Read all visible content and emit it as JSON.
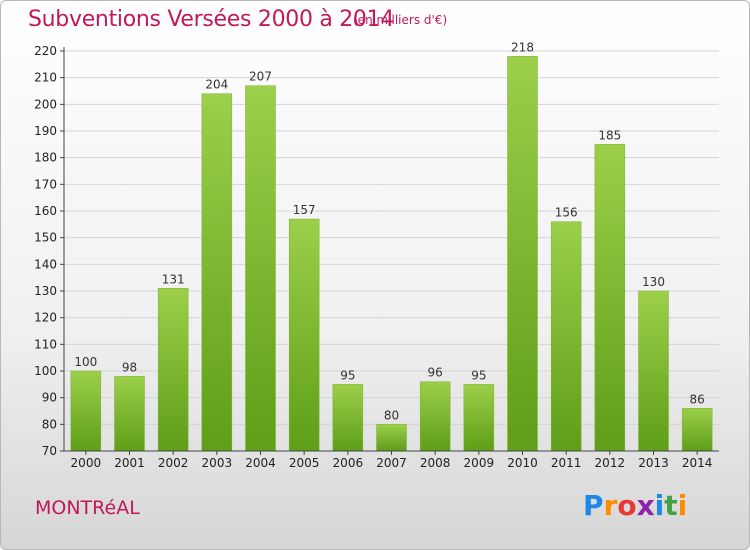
{
  "header": {
    "title": "Subventions Versées 2000 à 2014",
    "subtitle": "(en milliers d'€)"
  },
  "footer": {
    "city": "MONTRéAL",
    "logo_letters": [
      "P",
      "r",
      "o",
      "x",
      "i",
      "t",
      "i"
    ],
    "logo_colors": [
      "#1e88e5",
      "#fb8c00",
      "#e53935",
      "#8e24aa",
      "#1e88e5",
      "#43a047",
      "#fb8c00"
    ]
  },
  "chart_data": {
    "type": "bar",
    "title": "Subventions Versées 2000 à 2014",
    "subtitle": "(en milliers d'€)",
    "categories": [
      "2000",
      "2001",
      "2002",
      "2003",
      "2004",
      "2005",
      "2006",
      "2007",
      "2008",
      "2009",
      "2010",
      "2011",
      "2012",
      "2013",
      "2014"
    ],
    "values": [
      100,
      98,
      131,
      204,
      207,
      157,
      95,
      80,
      96,
      95,
      218,
      156,
      185,
      130,
      86
    ],
    "ylim": [
      70,
      220
    ],
    "yticks": [
      70,
      80,
      90,
      100,
      110,
      120,
      130,
      140,
      150,
      160,
      170,
      180,
      190,
      200,
      210,
      220
    ],
    "grid": true,
    "bar_color_top": "#9ccf4a",
    "bar_color_bottom": "#5e9e18"
  }
}
